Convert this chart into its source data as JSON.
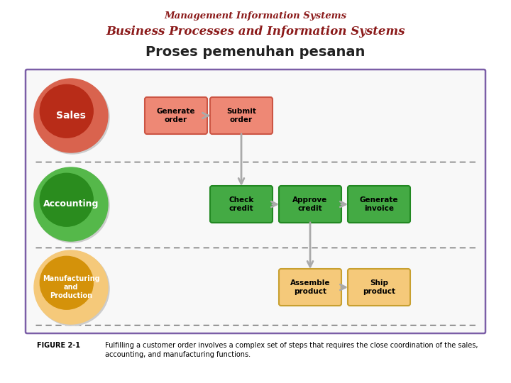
{
  "title1": "Management Information Systems",
  "title2": "Business Processes and Information Systems",
  "title3": "Proses pemenuhan pesanan",
  "title_color1": "#8B1A1A",
  "title_color2": "#8B1A1A",
  "title_color3": "#222222",
  "figure_caption_label": "FIGURE 2-1",
  "figure_caption_text": "Fulfilling a customer order involves a complex set of steps that requires the close coordination of the sales,\naccounting, and manufacturing functions.",
  "bg_color": "#FFFFFF",
  "box_border_color": "#7B5EA7",
  "dashed_line_color": "#666666",
  "sales_circle_outer": "#D9634E",
  "sales_circle_inner": "#B82C18",
  "accounting_circle_outer": "#55B84A",
  "accounting_circle_inner": "#2A8C1E",
  "manufacturing_circle_outer": "#F5C97A",
  "manufacturing_circle_inner": "#D4920A",
  "red_box_fill": "#EE8875",
  "red_box_border": "#CC5544",
  "green_box_fill": "#44AA44",
  "green_box_border": "#228822",
  "orange_box_fill": "#F5C97A",
  "orange_box_border": "#C8A030",
  "arrow_color": "#AAAAAA",
  "diagram_bg": "#F8F8F8"
}
